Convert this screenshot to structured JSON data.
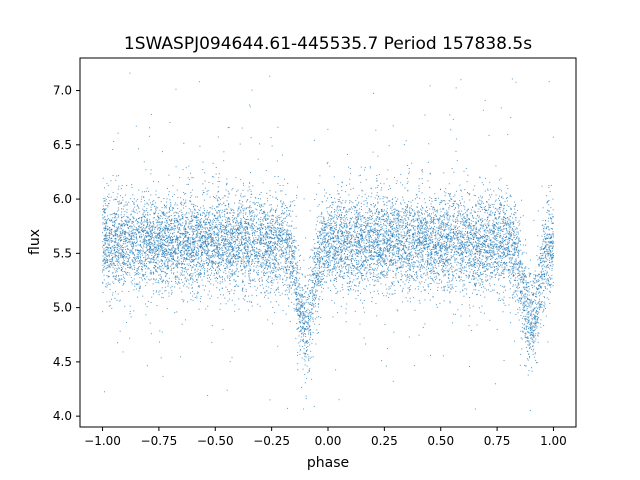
{
  "chart_data": {
    "type": "scatter",
    "title": "1SWASPJ094644.61-445535.7 Period 157838.5s",
    "xlabel": "phase",
    "ylabel": "flux",
    "xlim": [
      -1.1,
      1.1
    ],
    "ylim": [
      3.9,
      7.3
    ],
    "xticks": [
      -1.0,
      -0.75,
      -0.5,
      -0.25,
      0.0,
      0.25,
      0.5,
      0.75,
      1.0
    ],
    "xtick_labels": [
      "−1.00",
      "−0.75",
      "−0.50",
      "−0.25",
      "0.00",
      "0.25",
      "0.50",
      "0.75",
      "1.00"
    ],
    "yticks": [
      4.0,
      4.5,
      5.0,
      5.5,
      6.0,
      6.5,
      7.0
    ],
    "ytick_labels": [
      "4.0",
      "4.5",
      "5.0",
      "5.5",
      "6.0",
      "6.5",
      "7.0"
    ],
    "grid": false,
    "legend": "none",
    "series": [
      {
        "color": "#1f77b4",
        "marker": "dot",
        "x_range": [
          -1.0,
          1.0
        ],
        "baseline_flux": 5.6,
        "scatter_std": 0.22,
        "eclipses": [
          {
            "phase": -0.1,
            "depth_flux": 4.85,
            "width_phase": 0.035
          },
          {
            "phase": 0.9,
            "depth_flux": 4.85,
            "width_phase": 0.035
          }
        ],
        "y_min": 4.05,
        "y_max": 7.2
      }
    ]
  }
}
